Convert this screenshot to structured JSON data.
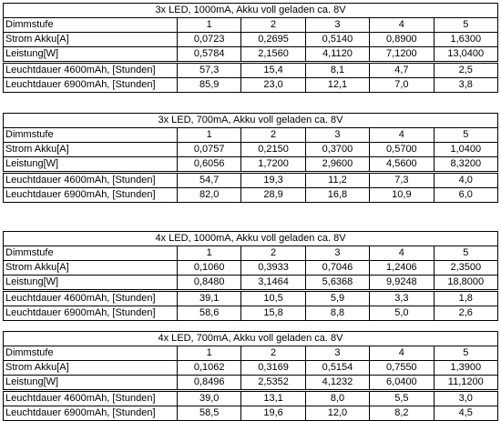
{
  "tables": [
    {
      "title": "3x LED, 1000mA, Akku voll geladen ca. 8V",
      "header": [
        "Dimmstufe",
        "1",
        "2",
        "3",
        "4",
        "5"
      ],
      "rows": [
        [
          "Strom Akku[A]",
          "0,0723",
          "0,2695",
          "0,5140",
          "0,8900",
          "1,6300"
        ],
        [
          "Leistung[W]",
          "0,5784",
          "2,1560",
          "4,1120",
          "7,1200",
          "13,0400"
        ],
        [
          "Leuchtdauer 4600mAh, [Stunden]",
          "57,3",
          "15,4",
          "8,1",
          "4,7",
          "2,5"
        ],
        [
          "Leuchtdauer 6900mAh, [Stunden]",
          "85,9",
          "23,0",
          "12,1",
          "7,0",
          "3,8"
        ]
      ]
    },
    {
      "title": "3x LED, 700mA, Akku voll geladen ca. 8V",
      "header": [
        "Dimmstufe",
        "1",
        "2",
        "3",
        "4",
        "5"
      ],
      "rows": [
        [
          "Strom Akku[A]",
          "0,0757",
          "0,2150",
          "0,3700",
          "0,5700",
          "1,0400"
        ],
        [
          "Leistung[W]",
          "0,6056",
          "1,7200",
          "2,9600",
          "4,5600",
          "8,3200"
        ],
        [
          "Leuchtdauer 4600mAh, [Stunden]",
          "54,7",
          "19,3",
          "11,2",
          "7,3",
          "4,0"
        ],
        [
          "Leuchtdauer 6900mAh, [Stunden]",
          "82,0",
          "28,9",
          "16,8",
          "10,9",
          "6,0"
        ]
      ]
    },
    {
      "title": "4x LED, 1000mA, Akku voll geladen ca. 8V",
      "header": [
        "Dimmstufe",
        "1",
        "2",
        "3",
        "4",
        "5"
      ],
      "rows": [
        [
          "Strom Akku[A]",
          "0,1060",
          "0,3933",
          "0,7046",
          "1,2406",
          "2,3500"
        ],
        [
          "Leistung[W]",
          "0,8480",
          "3,1464",
          "5,6368",
          "9,9248",
          "18,8000"
        ],
        [
          "Leuchtdauer 4600mAh, [Stunden]",
          "39,1",
          "10,5",
          "5,9",
          "3,3",
          "1,8"
        ],
        [
          "Leuchtdauer 6900mAh, [Stunden]",
          "58,6",
          "15,8",
          "8,8",
          "5,0",
          "2,6"
        ]
      ]
    },
    {
      "title": "4x LED, 700mA, Akku voll geladen ca. 8V",
      "header": [
        "Dimmstufe",
        "1",
        "2",
        "3",
        "4",
        "5"
      ],
      "rows": [
        [
          "Strom Akku[A]",
          "0,1062",
          "0,3169",
          "0,5154",
          "0,7550",
          "1,3900"
        ],
        [
          "Leistung[W]",
          "0,8496",
          "2,5352",
          "4,1232",
          "6,0400",
          "11,1200"
        ],
        [
          "Leuchtdauer 4600mAh, [Stunden]",
          "39,0",
          "13,1",
          "8,0",
          "5,5",
          "3,0"
        ],
        [
          "Leuchtdauer 6900mAh, [Stunden]",
          "58,5",
          "19,6",
          "12,0",
          "8,2",
          "4,5"
        ]
      ]
    }
  ]
}
